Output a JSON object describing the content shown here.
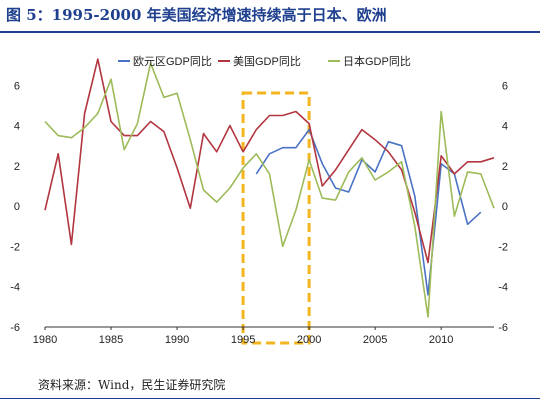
{
  "title": "图 5：1995-2000 年美国经济增速持续高于日本、欧洲",
  "source": "资料来源：Wind，民生证券研究院",
  "colors": {
    "eurozone": "#4a72c4",
    "us": "#b2353f",
    "japan": "#9dbb59",
    "highlight": "#f2b51f",
    "axis": "#333333",
    "title": "#1f3f8f"
  },
  "chart_data": {
    "type": "line",
    "xlim": [
      1980,
      2014
    ],
    "ylim": [
      -6,
      8
    ],
    "xticks": [
      "1980",
      "1985",
      "1990",
      "1995",
      "2000",
      "2005",
      "2010"
    ],
    "yticks_left": [
      "6",
      "4",
      "2",
      "0",
      "-2",
      "-4",
      "-6"
    ],
    "yticks_right": [
      "6",
      "4",
      "2",
      "0",
      "-2",
      "-4",
      "-6"
    ],
    "highlight_range": [
      1995,
      2000
    ],
    "legend_position": "top-right",
    "series": [
      {
        "name": "欧元区GDP同比",
        "x": [
          1996,
          1997,
          1998,
          1999,
          2000,
          2001,
          2002,
          2003,
          2004,
          2005,
          2006,
          2007,
          2008,
          2009,
          2010,
          2011,
          2012,
          2013
        ],
        "values": [
          1.6,
          2.6,
          2.9,
          2.9,
          3.8,
          2.1,
          0.9,
          0.7,
          2.3,
          1.7,
          3.2,
          3.0,
          0.5,
          -4.4,
          2.1,
          1.6,
          -0.9,
          -0.3
        ]
      },
      {
        "name": "美国GDP同比",
        "x": [
          1980,
          1981,
          1982,
          1983,
          1984,
          1985,
          1986,
          1987,
          1988,
          1989,
          1990,
          1991,
          1992,
          1993,
          1994,
          1995,
          1996,
          1997,
          1998,
          1999,
          2000,
          2001,
          2002,
          2003,
          2004,
          2005,
          2006,
          2007,
          2008,
          2009,
          2010,
          2011,
          2012,
          2013,
          2014
        ],
        "values": [
          -0.2,
          2.6,
          -1.9,
          4.6,
          7.3,
          4.2,
          3.5,
          3.5,
          4.2,
          3.7,
          1.9,
          -0.1,
          3.6,
          2.7,
          4.0,
          2.7,
          3.8,
          4.5,
          4.5,
          4.7,
          4.1,
          1.0,
          1.8,
          2.8,
          3.8,
          3.3,
          2.7,
          1.8,
          -0.3,
          -2.8,
          2.5,
          1.6,
          2.2,
          2.2,
          2.4
        ]
      },
      {
        "name": "日本GDP同比",
        "x": [
          1980,
          1981,
          1982,
          1983,
          1984,
          1985,
          1986,
          1987,
          1988,
          1989,
          1990,
          1991,
          1992,
          1993,
          1994,
          1995,
          1996,
          1997,
          1998,
          1999,
          2000,
          2001,
          2002,
          2003,
          2004,
          2005,
          2006,
          2007,
          2008,
          2009,
          2010,
          2011,
          2012,
          2013,
          2014
        ],
        "values": [
          4.2,
          3.5,
          3.4,
          3.9,
          4.6,
          6.3,
          2.8,
          4.1,
          7.1,
          5.4,
          5.6,
          3.3,
          0.8,
          0.2,
          0.9,
          1.9,
          2.6,
          1.6,
          -2.0,
          -0.2,
          2.3,
          0.4,
          0.3,
          1.7,
          2.4,
          1.3,
          1.7,
          2.2,
          -1.0,
          -5.5,
          4.7,
          -0.5,
          1.7,
          1.6,
          -0.1
        ]
      }
    ]
  }
}
